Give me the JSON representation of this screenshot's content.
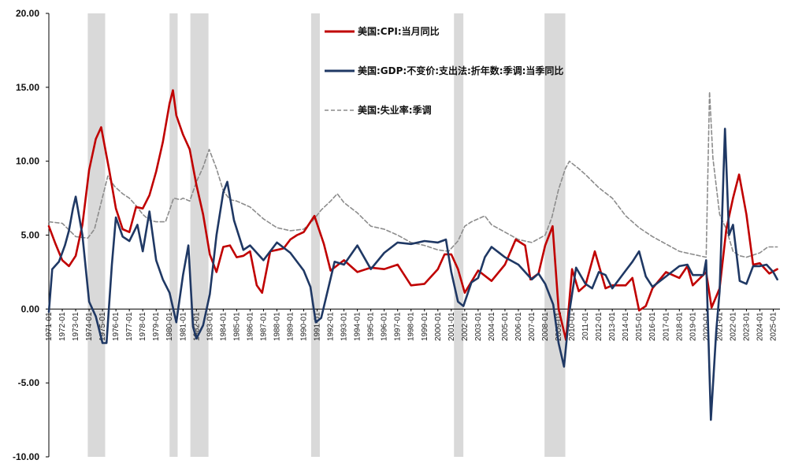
{
  "chart_data": {
    "type": "line",
    "title": "",
    "xlabel": "",
    "ylabel": "",
    "x_range": [
      1971.0,
      2025.5
    ],
    "ylim": [
      -10,
      20
    ],
    "y_ticks": [
      "20.00",
      "15.00",
      "10.00",
      "5.00",
      "0.00",
      "-5.00",
      "-10.00"
    ],
    "x_ticks": [
      "1971-01",
      "1972-01",
      "1973-01",
      "1974-01",
      "1975-01",
      "1976-01",
      "1977-01",
      "1978-01",
      "1979-01",
      "1980-01",
      "1981-01",
      "1982-01",
      "1983-01",
      "1984-01",
      "1985-01",
      "1986-01",
      "1987-01",
      "1988-01",
      "1989-01",
      "1990-01",
      "1991-01",
      "1992-01",
      "1993-01",
      "1994-01",
      "1995-01",
      "1996-01",
      "1997-01",
      "1998-01",
      "1999-01",
      "2000-01",
      "2001-01",
      "2002-01",
      "2003-01",
      "2004-01",
      "2005-01",
      "2006-01",
      "2007-01",
      "2008-01",
      "2009-01",
      "2010-01",
      "2011-01",
      "2012-01",
      "2013-01",
      "2014-01",
      "2015-01",
      "2016-01",
      "2017-01",
      "2018-01",
      "2019-01",
      "2020-01",
      "2021-01",
      "2022-01",
      "2023-01",
      "2024-01",
      "2025-01"
    ],
    "grid": false,
    "legend_position": "top-center",
    "recessions": [
      [
        1973.9,
        1975.2
      ],
      [
        1980.0,
        1980.6
      ],
      [
        1981.55,
        1982.9
      ],
      [
        1990.55,
        1991.2
      ],
      [
        2001.2,
        2001.9
      ],
      [
        2007.95,
        2009.5
      ]
    ],
    "recession_color": "#d9d9d9",
    "series": [
      {
        "name": "美国:CPI:当月同比",
        "color": "#c00000",
        "style": "solid",
        "points": [
          [
            1971.0,
            5.6
          ],
          [
            1971.5,
            4.4
          ],
          [
            1972.0,
            3.3
          ],
          [
            1972.5,
            2.9
          ],
          [
            1973.0,
            3.6
          ],
          [
            1973.5,
            5.7
          ],
          [
            1974.0,
            9.4
          ],
          [
            1974.5,
            11.5
          ],
          [
            1974.9,
            12.3
          ],
          [
            1975.5,
            9.4
          ],
          [
            1976.0,
            6.8
          ],
          [
            1976.5,
            5.4
          ],
          [
            1977.0,
            5.2
          ],
          [
            1977.5,
            6.9
          ],
          [
            1978.0,
            6.8
          ],
          [
            1978.5,
            7.7
          ],
          [
            1979.0,
            9.3
          ],
          [
            1979.5,
            11.3
          ],
          [
            1980.0,
            13.9
          ],
          [
            1980.25,
            14.8
          ],
          [
            1980.5,
            13.1
          ],
          [
            1981.0,
            11.8
          ],
          [
            1981.5,
            10.8
          ],
          [
            1982.0,
            8.4
          ],
          [
            1982.5,
            6.4
          ],
          [
            1983.0,
            3.7
          ],
          [
            1983.5,
            2.5
          ],
          [
            1984.0,
            4.2
          ],
          [
            1984.5,
            4.3
          ],
          [
            1985.0,
            3.5
          ],
          [
            1985.5,
            3.6
          ],
          [
            1986.0,
            3.9
          ],
          [
            1986.5,
            1.6
          ],
          [
            1986.9,
            1.1
          ],
          [
            1987.5,
            3.9
          ],
          [
            1988.0,
            4.0
          ],
          [
            1988.5,
            4.1
          ],
          [
            1989.0,
            4.7
          ],
          [
            1989.5,
            5.0
          ],
          [
            1990.0,
            5.2
          ],
          [
            1990.8,
            6.3
          ],
          [
            1991.5,
            4.4
          ],
          [
            1992.0,
            2.6
          ],
          [
            1993.0,
            3.3
          ],
          [
            1994.0,
            2.5
          ],
          [
            1995.0,
            2.8
          ],
          [
            1996.0,
            2.7
          ],
          [
            1997.0,
            3.0
          ],
          [
            1998.0,
            1.6
          ],
          [
            1999.0,
            1.7
          ],
          [
            2000.0,
            2.7
          ],
          [
            2000.5,
            3.7
          ],
          [
            2001.0,
            3.7
          ],
          [
            2001.5,
            2.7
          ],
          [
            2002.0,
            1.1
          ],
          [
            2003.0,
            2.6
          ],
          [
            2004.0,
            1.9
          ],
          [
            2005.0,
            3.0
          ],
          [
            2005.8,
            4.7
          ],
          [
            2006.5,
            4.3
          ],
          [
            2006.9,
            2.0
          ],
          [
            2007.5,
            2.4
          ],
          [
            2008.0,
            4.3
          ],
          [
            2008.55,
            5.6
          ],
          [
            2009.0,
            0.0
          ],
          [
            2009.55,
            -2.1
          ],
          [
            2010.0,
            2.7
          ],
          [
            2010.5,
            1.2
          ],
          [
            2011.0,
            1.6
          ],
          [
            2011.7,
            3.9
          ],
          [
            2012.5,
            1.4
          ],
          [
            2013.0,
            1.6
          ],
          [
            2014.0,
            1.6
          ],
          [
            2014.5,
            2.1
          ],
          [
            2015.0,
            -0.1
          ],
          [
            2015.5,
            0.2
          ],
          [
            2016.0,
            1.4
          ],
          [
            2017.0,
            2.5
          ],
          [
            2018.0,
            2.1
          ],
          [
            2018.6,
            2.9
          ],
          [
            2019.0,
            1.6
          ],
          [
            2020.0,
            2.5
          ],
          [
            2020.4,
            0.1
          ],
          [
            2021.0,
            1.4
          ],
          [
            2021.5,
            5.4
          ],
          [
            2022.0,
            7.5
          ],
          [
            2022.45,
            9.1
          ],
          [
            2023.0,
            6.4
          ],
          [
            2023.5,
            3.0
          ],
          [
            2024.0,
            3.1
          ],
          [
            2024.7,
            2.4
          ],
          [
            2025.3,
            2.7
          ]
        ]
      },
      {
        "name": "美国:GDP:不变价:支出法:折年数:季调:当季同比",
        "color": "#1f3864",
        "style": "solid",
        "points": [
          [
            1971.0,
            -0.2
          ],
          [
            1971.25,
            2.7
          ],
          [
            1971.75,
            3.2
          ],
          [
            1972.2,
            4.3
          ],
          [
            1972.5,
            5.3
          ],
          [
            1972.8,
            6.8
          ],
          [
            1973.0,
            7.6
          ],
          [
            1973.5,
            5.0
          ],
          [
            1974.0,
            0.5
          ],
          [
            1974.5,
            -0.5
          ],
          [
            1975.0,
            -2.3
          ],
          [
            1975.3,
            -2.3
          ],
          [
            1975.7,
            3.0
          ],
          [
            1976.0,
            6.2
          ],
          [
            1976.5,
            4.9
          ],
          [
            1977.0,
            4.6
          ],
          [
            1977.6,
            5.7
          ],
          [
            1978.0,
            3.9
          ],
          [
            1978.5,
            6.6
          ],
          [
            1979.0,
            3.3
          ],
          [
            1979.5,
            2.0
          ],
          [
            1980.0,
            1.1
          ],
          [
            1980.5,
            -0.9
          ],
          [
            1981.0,
            2.3
          ],
          [
            1981.4,
            4.3
          ],
          [
            1981.75,
            -1.2
          ],
          [
            1982.0,
            -2.0
          ],
          [
            1982.5,
            -1.1
          ],
          [
            1983.0,
            1.0
          ],
          [
            1983.5,
            5.0
          ],
          [
            1984.0,
            7.9
          ],
          [
            1984.3,
            8.6
          ],
          [
            1984.8,
            6.0
          ],
          [
            1985.5,
            4.0
          ],
          [
            1986.0,
            4.3
          ],
          [
            1987.0,
            3.3
          ],
          [
            1988.0,
            4.5
          ],
          [
            1989.0,
            3.8
          ],
          [
            1990.0,
            2.6
          ],
          [
            1990.5,
            1.5
          ],
          [
            1990.9,
            -0.9
          ],
          [
            1991.3,
            -0.6
          ],
          [
            1991.8,
            1.3
          ],
          [
            1992.3,
            3.2
          ],
          [
            1993.0,
            3.0
          ],
          [
            1994.0,
            4.3
          ],
          [
            1995.0,
            2.7
          ],
          [
            1996.0,
            3.8
          ],
          [
            1997.0,
            4.5
          ],
          [
            1998.0,
            4.4
          ],
          [
            1999.0,
            4.6
          ],
          [
            2000.0,
            4.5
          ],
          [
            2000.6,
            4.7
          ],
          [
            2001.0,
            2.5
          ],
          [
            2001.5,
            0.5
          ],
          [
            2001.9,
            0.2
          ],
          [
            2002.5,
            1.8
          ],
          [
            2003.0,
            2.1
          ],
          [
            2003.5,
            3.5
          ],
          [
            2004.0,
            4.2
          ],
          [
            2005.0,
            3.5
          ],
          [
            2006.0,
            3.0
          ],
          [
            2007.0,
            2.0
          ],
          [
            2007.5,
            2.4
          ],
          [
            2008.0,
            1.7
          ],
          [
            2008.6,
            0.3
          ],
          [
            2009.0,
            -2.3
          ],
          [
            2009.4,
            -3.9
          ],
          [
            2009.8,
            -0.2
          ],
          [
            2010.3,
            2.8
          ],
          [
            2011.0,
            1.7
          ],
          [
            2011.5,
            1.4
          ],
          [
            2012.0,
            2.5
          ],
          [
            2012.5,
            2.3
          ],
          [
            2013.0,
            1.4
          ],
          [
            2014.0,
            2.6
          ],
          [
            2014.5,
            3.2
          ],
          [
            2015.0,
            3.9
          ],
          [
            2015.5,
            2.2
          ],
          [
            2016.0,
            1.5
          ],
          [
            2017.0,
            2.2
          ],
          [
            2018.0,
            2.9
          ],
          [
            2018.6,
            3.0
          ],
          [
            2019.0,
            2.3
          ],
          [
            2019.8,
            2.3
          ],
          [
            2020.0,
            3.3
          ],
          [
            2020.35,
            -7.5
          ],
          [
            2020.75,
            -1.5
          ],
          [
            2021.0,
            1.2
          ],
          [
            2021.4,
            12.2
          ],
          [
            2021.7,
            5.0
          ],
          [
            2022.0,
            5.7
          ],
          [
            2022.5,
            1.9
          ],
          [
            2023.0,
            1.7
          ],
          [
            2023.5,
            2.9
          ],
          [
            2024.0,
            2.9
          ],
          [
            2024.5,
            3.0
          ],
          [
            2025.0,
            2.5
          ],
          [
            2025.3,
            2.0
          ]
        ]
      },
      {
        "name": "美国:失业率:季调",
        "color": "#8c8c8c",
        "style": "dashed",
        "points": [
          [
            1971.0,
            5.9
          ],
          [
            1972.0,
            5.8
          ],
          [
            1973.0,
            4.9
          ],
          [
            1973.9,
            4.8
          ],
          [
            1974.4,
            5.4
          ],
          [
            1974.9,
            7.2
          ],
          [
            1975.4,
            9.0
          ],
          [
            1975.9,
            8.3
          ],
          [
            1976.5,
            7.8
          ],
          [
            1977.0,
            7.5
          ],
          [
            1977.5,
            7.0
          ],
          [
            1978.0,
            6.4
          ],
          [
            1978.5,
            6.0
          ],
          [
            1979.0,
            5.9
          ],
          [
            1979.7,
            5.9
          ],
          [
            1980.3,
            7.5
          ],
          [
            1980.8,
            7.4
          ],
          [
            1981.0,
            7.5
          ],
          [
            1981.5,
            7.3
          ],
          [
            1982.0,
            8.6
          ],
          [
            1982.5,
            9.6
          ],
          [
            1982.95,
            10.8
          ],
          [
            1983.5,
            9.5
          ],
          [
            1984.0,
            8.0
          ],
          [
            1984.5,
            7.4
          ],
          [
            1985.0,
            7.3
          ],
          [
            1986.0,
            6.9
          ],
          [
            1987.0,
            6.1
          ],
          [
            1988.0,
            5.5
          ],
          [
            1989.0,
            5.3
          ],
          [
            1990.0,
            5.4
          ],
          [
            1990.7,
            6.0
          ],
          [
            1991.3,
            6.7
          ],
          [
            1992.0,
            7.3
          ],
          [
            1992.5,
            7.8
          ],
          [
            1993.0,
            7.2
          ],
          [
            1994.0,
            6.5
          ],
          [
            1995.0,
            5.6
          ],
          [
            1996.0,
            5.4
          ],
          [
            1997.0,
            5.0
          ],
          [
            1998.0,
            4.5
          ],
          [
            1999.0,
            4.3
          ],
          [
            2000.0,
            4.0
          ],
          [
            2000.8,
            3.9
          ],
          [
            2001.5,
            4.6
          ],
          [
            2002.0,
            5.6
          ],
          [
            2002.5,
            5.9
          ],
          [
            2003.5,
            6.3
          ],
          [
            2004.0,
            5.7
          ],
          [
            2005.0,
            5.2
          ],
          [
            2006.0,
            4.7
          ],
          [
            2007.0,
            4.5
          ],
          [
            2008.0,
            5.0
          ],
          [
            2008.5,
            6.2
          ],
          [
            2009.0,
            8.1
          ],
          [
            2009.5,
            9.5
          ],
          [
            2009.8,
            10.0
          ],
          [
            2010.5,
            9.5
          ],
          [
            2011.0,
            9.1
          ],
          [
            2012.0,
            8.2
          ],
          [
            2013.0,
            7.5
          ],
          [
            2014.0,
            6.3
          ],
          [
            2015.0,
            5.5
          ],
          [
            2016.0,
            4.9
          ],
          [
            2017.0,
            4.4
          ],
          [
            2018.0,
            3.9
          ],
          [
            2019.0,
            3.7
          ],
          [
            2020.0,
            3.5
          ],
          [
            2020.25,
            14.7
          ],
          [
            2020.5,
            10.2
          ],
          [
            2021.0,
            6.4
          ],
          [
            2021.5,
            5.4
          ],
          [
            2022.0,
            3.9
          ],
          [
            2022.5,
            3.6
          ],
          [
            2023.0,
            3.5
          ],
          [
            2024.0,
            3.8
          ],
          [
            2024.6,
            4.2
          ],
          [
            2025.3,
            4.2
          ]
        ]
      }
    ]
  }
}
